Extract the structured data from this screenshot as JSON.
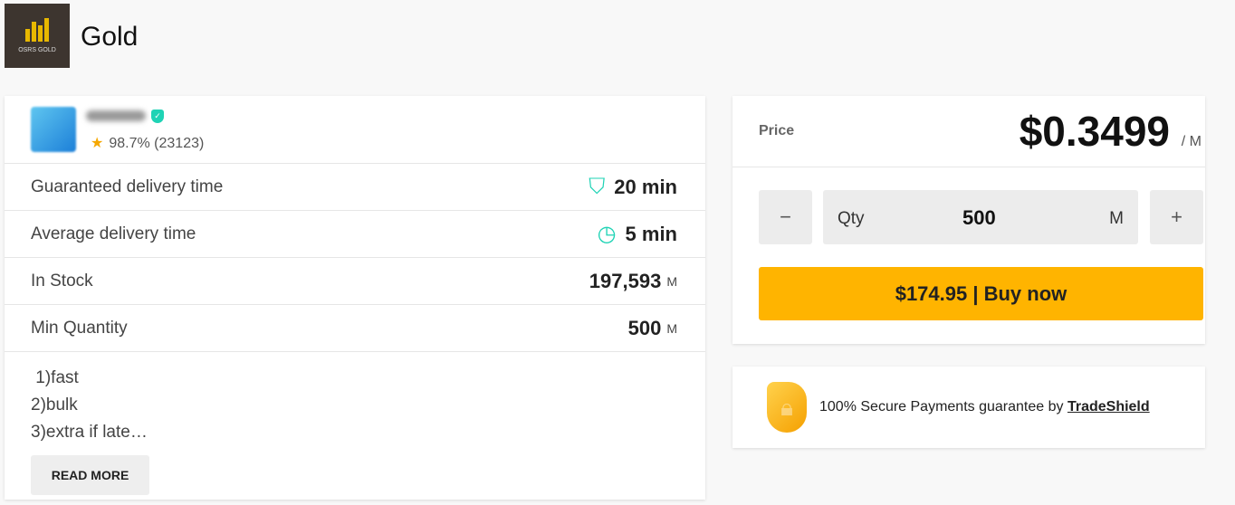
{
  "header": {
    "logo_text": "OSRS GOLD",
    "title": "Gold"
  },
  "seller": {
    "rating": "98.7%",
    "reviews": "(23123)"
  },
  "details": [
    {
      "label": "Guaranteed delivery time",
      "value": "20 min",
      "icon": "shield-check-icon"
    },
    {
      "label": "Average delivery time",
      "value": "5 min",
      "icon": "clock-icon"
    },
    {
      "label": "In Stock",
      "value": "197,593",
      "unit": "M"
    },
    {
      "label": "Min Quantity",
      "value": "500",
      "unit": "M"
    }
  ],
  "description": [
    " 1)fast",
    "2)bulk",
    "3)extra if late…"
  ],
  "read_more": "READ MORE",
  "price": {
    "label": "Price",
    "value": "$0.3499",
    "unit": "/ M"
  },
  "qty": {
    "minus": "−",
    "label": "Qty",
    "value": "500",
    "unit": "M",
    "plus": "+"
  },
  "buy_label": "$174.95 | Buy now",
  "secure": {
    "text": "100% Secure Payments guarantee by ",
    "link": "TradeShield"
  },
  "colors": {
    "accent": "#ffb400",
    "teal": "#1fd3b5"
  }
}
